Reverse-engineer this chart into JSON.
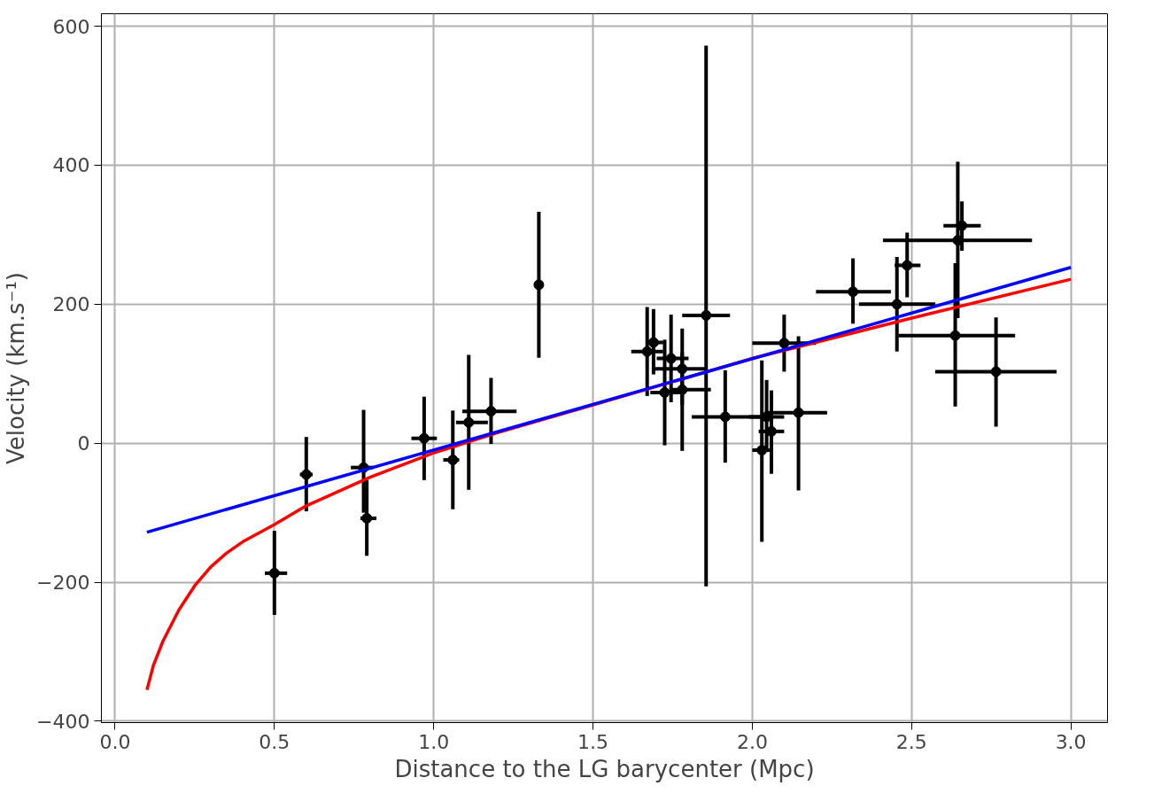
{
  "chart_data": {
    "type": "scatter",
    "xlabel": "Distance to the LG barycenter (Mpc)",
    "ylabel": "Velocity (km.s⁻¹)",
    "xlim": [
      -0.043,
      3.115
    ],
    "ylim": [
      -402,
      618
    ],
    "xticks": [
      {
        "value": 0,
        "label": "0.0"
      },
      {
        "value": 0.5,
        "label": "0.5"
      },
      {
        "value": 1,
        "label": "1.0"
      },
      {
        "value": 1.5,
        "label": "1.5"
      },
      {
        "value": 2,
        "label": "2.0"
      },
      {
        "value": 2.5,
        "label": "2.5"
      },
      {
        "value": 3,
        "label": "3.0"
      }
    ],
    "yticks": [
      {
        "value": -400,
        "label": "−400"
      },
      {
        "value": -200,
        "label": "−200"
      },
      0,
      200,
      400,
      600
    ],
    "grid": true,
    "series": [
      {
        "color": "#000000",
        "marker": "circle",
        "x": [
          0.5,
          0.6,
          0.78,
          0.79,
          0.97,
          1.06,
          1.11,
          1.18,
          1.33,
          1.67,
          1.69,
          1.745,
          1.78,
          1.725,
          1.78,
          1.855,
          1.915,
          2.03,
          2.045,
          2.06,
          2.1,
          2.145,
          2.316,
          2.454,
          2.486,
          2.645,
          2.658,
          2.637,
          2.765
        ],
        "values": [
          -187,
          -45,
          -35,
          -108,
          7,
          -24,
          30,
          46,
          228,
          132,
          145,
          122,
          107,
          73,
          77,
          184,
          38,
          -10,
          38,
          17,
          144,
          44,
          218,
          200,
          256,
          292,
          313,
          155,
          103
        ],
        "errors": [
          [
            -247,
            -126
          ],
          [
            -98,
            9
          ],
          [
            -100,
            48
          ],
          [
            -162,
            -53
          ],
          [
            -53,
            67
          ],
          [
            -95,
            47
          ],
          [
            -67,
            127
          ],
          [
            -1,
            94
          ],
          [
            123,
            333
          ],
          [
            68,
            196
          ],
          [
            99,
            193
          ],
          [
            59,
            185
          ],
          [
            55,
            165
          ],
          [
            -3,
            149
          ],
          [
            -11,
            130
          ],
          [
            -206,
            572
          ],
          [
            -28,
            105
          ],
          [
            -142,
            119
          ],
          [
            -9,
            91
          ],
          [
            -44,
            76
          ],
          [
            103,
            185
          ],
          [
            -68,
            154
          ],
          [
            172,
            266
          ],
          [
            132,
            268
          ],
          [
            210,
            303
          ],
          [
            180,
            405
          ],
          [
            277,
            348
          ],
          [
            53,
            259
          ],
          [
            24,
            181
          ]
        ],
        "xerrors": [
          [
            0.47,
            0.54
          ],
          [
            0.58,
            0.62
          ],
          [
            0.74,
            0.81
          ],
          [
            0.77,
            0.82
          ],
          [
            0.93,
            1.01
          ],
          [
            1.03,
            1.08
          ],
          [
            1.07,
            1.17
          ],
          [
            1.09,
            1.26
          ],
          [
            1.32,
            1.34
          ],
          [
            1.62,
            1.72
          ],
          [
            1.68,
            1.72
          ],
          [
            1.7,
            1.8
          ],
          [
            1.69,
            1.86
          ],
          [
            1.68,
            1.77
          ],
          [
            1.74,
            1.87
          ],
          [
            1.78,
            1.93
          ],
          [
            1.81,
            2.03
          ],
          [
            2.0,
            2.06
          ],
          [
            1.99,
            2.1
          ],
          [
            2.02,
            2.1
          ],
          [
            2.0,
            2.2
          ],
          [
            2.04,
            2.235
          ],
          [
            2.2,
            2.435
          ],
          [
            2.335,
            2.574
          ],
          [
            2.447,
            2.528
          ],
          [
            2.41,
            2.878
          ],
          [
            2.6,
            2.717
          ],
          [
            2.459,
            2.825
          ],
          [
            2.574,
            2.955
          ]
        ]
      },
      {
        "type": "line",
        "color": "#ff0000",
        "x": [
          0.1,
          0.12,
          0.15,
          0.2,
          0.25,
          0.3,
          0.35,
          0.4,
          0.5,
          0.6,
          0.8,
          1.0,
          1.2,
          1.5,
          2.0,
          2.5,
          3.0
        ],
        "values": [
          -355,
          -320,
          -285,
          -240,
          -205,
          -178,
          -158,
          -142,
          -117,
          -90,
          -49,
          -14,
          15,
          55,
          122,
          180,
          236
        ]
      },
      {
        "type": "line",
        "color": "#0000ff",
        "x": [
          0.1,
          3.0
        ],
        "values": [
          -128,
          253
        ]
      }
    ]
  }
}
